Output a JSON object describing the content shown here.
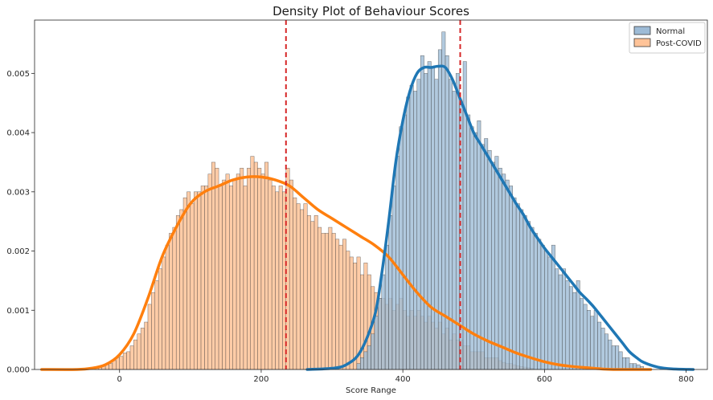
{
  "chart_data": {
    "type": "histogram",
    "title": "Density Plot of Behaviour Scores",
    "xlabel": "Score Range",
    "ylabel": "",
    "xlim": [
      -120,
      830
    ],
    "ylim": [
      0,
      0.0059
    ],
    "x_ticks": [
      0,
      200,
      400,
      600,
      800
    ],
    "y_ticks": [
      0,
      0.001,
      0.002,
      0.003,
      0.004,
      0.005
    ],
    "x_tick_labels": [
      "0",
      "200",
      "400",
      "600",
      "800"
    ],
    "y_tick_labels": [
      "0.000",
      "0.001",
      "0.002",
      "0.003",
      "0.004",
      "0.005"
    ],
    "legend_position": "top-right",
    "legend": [
      "Normal",
      "Post-COVID"
    ],
    "mean_lines": [
      235,
      481
    ],
    "mean_line_color": "#d62728",
    "series": [
      {
        "name": "Normal",
        "hist_color": "#9dbbd6",
        "kde_color": "#1f77b4",
        "kde_x": [
          265,
          300,
          320,
          340,
          360,
          370,
          380,
          390,
          400,
          410,
          420,
          430,
          440,
          450,
          460,
          470,
          480,
          490,
          500,
          510,
          520,
          530,
          540,
          550,
          560,
          570,
          580,
          590,
          600,
          610,
          620,
          630,
          640,
          650,
          660,
          670,
          680,
          690,
          700,
          710,
          720,
          730,
          740,
          760,
          780,
          810
        ],
        "kde_y": [
          0.0,
          2e-05,
          8e-05,
          0.0003,
          0.0009,
          0.0016,
          0.0025,
          0.0035,
          0.0042,
          0.0047,
          0.005,
          0.0051,
          0.0051,
          0.00512,
          0.0051,
          0.0049,
          0.0046,
          0.0043,
          0.004,
          0.0038,
          0.0036,
          0.0034,
          0.0032,
          0.003,
          0.0028,
          0.00262,
          0.0024,
          0.00222,
          0.00205,
          0.0019,
          0.00175,
          0.0016,
          0.00145,
          0.0013,
          0.00118,
          0.00105,
          0.0009,
          0.00075,
          0.0006,
          0.00045,
          0.0003,
          0.0002,
          0.00012,
          4e-05,
          1e-05,
          0.0
        ],
        "bins": [
          {
            "x": 335,
            "y": 0.0001
          },
          {
            "x": 340,
            "y": 0.0002
          },
          {
            "x": 345,
            "y": 0.0003
          },
          {
            "x": 350,
            "y": 0.0004
          },
          {
            "x": 355,
            "y": 0.0006
          },
          {
            "x": 360,
            "y": 0.0009
          },
          {
            "x": 365,
            "y": 0.0012
          },
          {
            "x": 370,
            "y": 0.0016
          },
          {
            "x": 375,
            "y": 0.0021
          },
          {
            "x": 380,
            "y": 0.0026
          },
          {
            "x": 385,
            "y": 0.0031
          },
          {
            "x": 390,
            "y": 0.0036
          },
          {
            "x": 395,
            "y": 0.0041
          },
          {
            "x": 400,
            "y": 0.0043
          },
          {
            "x": 405,
            "y": 0.0046
          },
          {
            "x": 410,
            "y": 0.0048
          },
          {
            "x": 415,
            "y": 0.0047
          },
          {
            "x": 420,
            "y": 0.0049
          },
          {
            "x": 425,
            "y": 0.0053
          },
          {
            "x": 430,
            "y": 0.005
          },
          {
            "x": 435,
            "y": 0.0052
          },
          {
            "x": 440,
            "y": 0.0051
          },
          {
            "x": 445,
            "y": 0.0049
          },
          {
            "x": 450,
            "y": 0.0054
          },
          {
            "x": 455,
            "y": 0.0057
          },
          {
            "x": 460,
            "y": 0.0053
          },
          {
            "x": 465,
            "y": 0.0049
          },
          {
            "x": 470,
            "y": 0.0047
          },
          {
            "x": 475,
            "y": 0.005
          },
          {
            "x": 480,
            "y": 0.0045
          },
          {
            "x": 485,
            "y": 0.0052
          },
          {
            "x": 490,
            "y": 0.0043
          },
          {
            "x": 495,
            "y": 0.0041
          },
          {
            "x": 500,
            "y": 0.004
          },
          {
            "x": 505,
            "y": 0.0042
          },
          {
            "x": 510,
            "y": 0.0038
          },
          {
            "x": 515,
            "y": 0.0039
          },
          {
            "x": 520,
            "y": 0.0037
          },
          {
            "x": 525,
            "y": 0.0035
          },
          {
            "x": 530,
            "y": 0.0036
          },
          {
            "x": 535,
            "y": 0.0034
          },
          {
            "x": 540,
            "y": 0.0033
          },
          {
            "x": 545,
            "y": 0.0032
          },
          {
            "x": 550,
            "y": 0.0031
          },
          {
            "x": 555,
            "y": 0.0029
          },
          {
            "x": 560,
            "y": 0.0028
          },
          {
            "x": 565,
            "y": 0.0027
          },
          {
            "x": 570,
            "y": 0.0026
          },
          {
            "x": 575,
            "y": 0.0025
          },
          {
            "x": 580,
            "y": 0.0024
          },
          {
            "x": 585,
            "y": 0.0023
          },
          {
            "x": 590,
            "y": 0.0022
          },
          {
            "x": 595,
            "y": 0.0021
          },
          {
            "x": 600,
            "y": 0.002
          },
          {
            "x": 605,
            "y": 0.0019
          },
          {
            "x": 610,
            "y": 0.0021
          },
          {
            "x": 615,
            "y": 0.0017
          },
          {
            "x": 620,
            "y": 0.0016
          },
          {
            "x": 625,
            "y": 0.0017
          },
          {
            "x": 630,
            "y": 0.0015
          },
          {
            "x": 635,
            "y": 0.0014
          },
          {
            "x": 640,
            "y": 0.0013
          },
          {
            "x": 645,
            "y": 0.0015
          },
          {
            "x": 650,
            "y": 0.0012
          },
          {
            "x": 655,
            "y": 0.0011
          },
          {
            "x": 660,
            "y": 0.001
          },
          {
            "x": 665,
            "y": 0.0009
          },
          {
            "x": 670,
            "y": 0.001
          },
          {
            "x": 675,
            "y": 0.0008
          },
          {
            "x": 680,
            "y": 0.0007
          },
          {
            "x": 685,
            "y": 0.0006
          },
          {
            "x": 690,
            "y": 0.0005
          },
          {
            "x": 695,
            "y": 0.0004
          },
          {
            "x": 700,
            "y": 0.0004
          },
          {
            "x": 705,
            "y": 0.0003
          },
          {
            "x": 710,
            "y": 0.0002
          },
          {
            "x": 715,
            "y": 0.0002
          },
          {
            "x": 720,
            "y": 0.0001
          },
          {
            "x": 725,
            "y": 0.0001
          },
          {
            "x": 730,
            "y": 8e-05
          },
          {
            "x": 735,
            "y": 5e-05
          }
        ]
      },
      {
        "name": "Post-COVID",
        "hist_color": "#ffc398",
        "kde_color": "#ff7f0e",
        "kde_x": [
          -110,
          -60,
          -40,
          -20,
          0,
          20,
          40,
          60,
          80,
          100,
          120,
          140,
          160,
          180,
          200,
          220,
          240,
          260,
          280,
          300,
          320,
          340,
          360,
          380,
          400,
          420,
          440,
          460,
          480,
          500,
          520,
          540,
          560,
          580,
          600,
          620,
          640,
          660,
          680,
          700,
          750
        ],
        "kde_y": [
          0.0,
          0.0,
          2e-05,
          8e-05,
          0.00025,
          0.0006,
          0.0012,
          0.0019,
          0.0024,
          0.0028,
          0.003,
          0.0031,
          0.0032,
          0.00325,
          0.00325,
          0.0032,
          0.0031,
          0.0029,
          0.0027,
          0.00255,
          0.0024,
          0.00225,
          0.0021,
          0.0019,
          0.0016,
          0.0013,
          0.00105,
          0.0009,
          0.00075,
          0.0006,
          0.00048,
          0.00038,
          0.00028,
          0.0002,
          0.00013,
          8e-05,
          5e-05,
          3e-05,
          1e-05,
          0.0,
          0.0
        ],
        "bins": [
          {
            "x": -35,
            "y": 2e-05
          },
          {
            "x": -30,
            "y": 4e-05
          },
          {
            "x": -25,
            "y": 6e-05
          },
          {
            "x": -20,
            "y": 8e-05
          },
          {
            "x": -15,
            "y": 0.0001
          },
          {
            "x": -10,
            "y": 0.00015
          },
          {
            "x": -5,
            "y": 0.0002
          },
          {
            "x": 0,
            "y": 0.00022
          },
          {
            "x": 5,
            "y": 0.00028
          },
          {
            "x": 10,
            "y": 0.0003
          },
          {
            "x": 15,
            "y": 0.0004
          },
          {
            "x": 20,
            "y": 0.0005
          },
          {
            "x": 25,
            "y": 0.0006
          },
          {
            "x": 30,
            "y": 0.0007
          },
          {
            "x": 35,
            "y": 0.0008
          },
          {
            "x": 40,
            "y": 0.0011
          },
          {
            "x": 45,
            "y": 0.0013
          },
          {
            "x": 50,
            "y": 0.0015
          },
          {
            "x": 55,
            "y": 0.0017
          },
          {
            "x": 60,
            "y": 0.0019
          },
          {
            "x": 65,
            "y": 0.0021
          },
          {
            "x": 70,
            "y": 0.0023
          },
          {
            "x": 75,
            "y": 0.0024
          },
          {
            "x": 80,
            "y": 0.0026
          },
          {
            "x": 85,
            "y": 0.0027
          },
          {
            "x": 90,
            "y": 0.0029
          },
          {
            "x": 95,
            "y": 0.003
          },
          {
            "x": 100,
            "y": 0.0028
          },
          {
            "x": 105,
            "y": 0.003
          },
          {
            "x": 110,
            "y": 0.003
          },
          {
            "x": 115,
            "y": 0.0031
          },
          {
            "x": 120,
            "y": 0.0031
          },
          {
            "x": 125,
            "y": 0.0033
          },
          {
            "x": 130,
            "y": 0.0035
          },
          {
            "x": 135,
            "y": 0.0034
          },
          {
            "x": 140,
            "y": 0.0031
          },
          {
            "x": 145,
            "y": 0.0032
          },
          {
            "x": 150,
            "y": 0.0033
          },
          {
            "x": 155,
            "y": 0.0031
          },
          {
            "x": 160,
            "y": 0.0032
          },
          {
            "x": 165,
            "y": 0.0033
          },
          {
            "x": 170,
            "y": 0.0034
          },
          {
            "x": 175,
            "y": 0.0031
          },
          {
            "x": 180,
            "y": 0.0034
          },
          {
            "x": 185,
            "y": 0.0036
          },
          {
            "x": 190,
            "y": 0.0035
          },
          {
            "x": 195,
            "y": 0.0034
          },
          {
            "x": 200,
            "y": 0.0033
          },
          {
            "x": 205,
            "y": 0.0035
          },
          {
            "x": 210,
            "y": 0.0032
          },
          {
            "x": 215,
            "y": 0.0031
          },
          {
            "x": 220,
            "y": 0.003
          },
          {
            "x": 225,
            "y": 0.0031
          },
          {
            "x": 230,
            "y": 0.003
          },
          {
            "x": 235,
            "y": 0.0034
          },
          {
            "x": 240,
            "y": 0.0032
          },
          {
            "x": 245,
            "y": 0.0029
          },
          {
            "x": 250,
            "y": 0.0028
          },
          {
            "x": 255,
            "y": 0.0027
          },
          {
            "x": 260,
            "y": 0.0028
          },
          {
            "x": 265,
            "y": 0.0026
          },
          {
            "x": 270,
            "y": 0.0025
          },
          {
            "x": 275,
            "y": 0.0026
          },
          {
            "x": 280,
            "y": 0.0024
          },
          {
            "x": 285,
            "y": 0.0023
          },
          {
            "x": 290,
            "y": 0.0023
          },
          {
            "x": 295,
            "y": 0.0024
          },
          {
            "x": 300,
            "y": 0.0023
          },
          {
            "x": 305,
            "y": 0.0022
          },
          {
            "x": 310,
            "y": 0.0021
          },
          {
            "x": 315,
            "y": 0.0022
          },
          {
            "x": 320,
            "y": 0.002
          },
          {
            "x": 325,
            "y": 0.0019
          },
          {
            "x": 330,
            "y": 0.0018
          },
          {
            "x": 335,
            "y": 0.0019
          },
          {
            "x": 340,
            "y": 0.0016
          },
          {
            "x": 345,
            "y": 0.0018
          },
          {
            "x": 350,
            "y": 0.0016
          },
          {
            "x": 355,
            "y": 0.0014
          },
          {
            "x": 360,
            "y": 0.0013
          },
          {
            "x": 365,
            "y": 0.0012
          },
          {
            "x": 370,
            "y": 0.0012
          },
          {
            "x": 375,
            "y": 0.0011
          },
          {
            "x": 380,
            "y": 0.0012
          },
          {
            "x": 385,
            "y": 0.001
          },
          {
            "x": 390,
            "y": 0.0011
          },
          {
            "x": 395,
            "y": 0.0012
          },
          {
            "x": 400,
            "y": 0.001
          },
          {
            "x": 405,
            "y": 0.0009
          },
          {
            "x": 410,
            "y": 0.001
          },
          {
            "x": 415,
            "y": 0.0009
          },
          {
            "x": 420,
            "y": 0.001
          },
          {
            "x": 425,
            "y": 0.0009
          },
          {
            "x": 430,
            "y": 0.0008
          },
          {
            "x": 435,
            "y": 0.0009
          },
          {
            "x": 440,
            "y": 0.0008
          },
          {
            "x": 445,
            "y": 0.0007
          },
          {
            "x": 450,
            "y": 0.0008
          },
          {
            "x": 455,
            "y": 0.0006
          },
          {
            "x": 460,
            "y": 0.0007
          },
          {
            "x": 465,
            "y": 0.0005
          },
          {
            "x": 470,
            "y": 0.0006
          },
          {
            "x": 475,
            "y": 0.0005
          },
          {
            "x": 480,
            "y": 0.0005
          },
          {
            "x": 485,
            "y": 0.0004
          },
          {
            "x": 490,
            "y": 0.0004
          },
          {
            "x": 495,
            "y": 0.0003
          },
          {
            "x": 500,
            "y": 0.0003
          },
          {
            "x": 505,
            "y": 0.0003
          },
          {
            "x": 510,
            "y": 0.0003
          },
          {
            "x": 515,
            "y": 0.0002
          },
          {
            "x": 520,
            "y": 0.0002
          },
          {
            "x": 525,
            "y": 0.0002
          },
          {
            "x": 530,
            "y": 0.0002
          },
          {
            "x": 535,
            "y": 0.00015
          },
          {
            "x": 540,
            "y": 0.00012
          },
          {
            "x": 545,
            "y": 0.0001
          },
          {
            "x": 550,
            "y": 0.0001
          },
          {
            "x": 555,
            "y": 8e-05
          },
          {
            "x": 560,
            "y": 6e-05
          },
          {
            "x": 565,
            "y": 5e-05
          },
          {
            "x": 570,
            "y": 4e-05
          },
          {
            "x": 575,
            "y": 3e-05
          },
          {
            "x": 580,
            "y": 2e-05
          }
        ]
      }
    ]
  }
}
